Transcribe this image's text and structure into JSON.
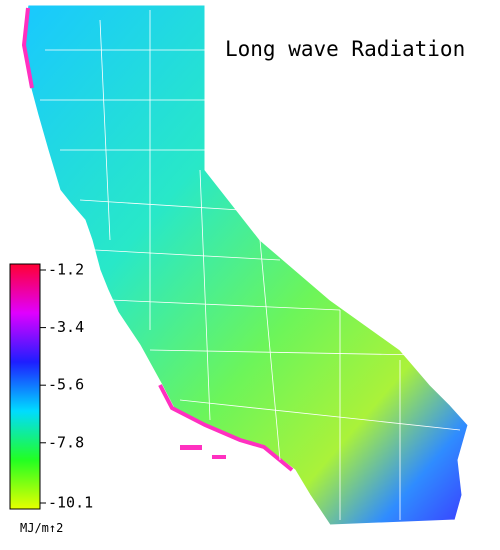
{
  "title": "Long wave Radiation",
  "legend": {
    "ticks": [
      -1.2,
      -3.4,
      -5.6,
      -7.8,
      -10.1
    ],
    "unit": "MJ/m↑2",
    "colors": [
      "#ff0033",
      "#e000ff",
      "#1e1eff",
      "#00dcff",
      "#22ff22",
      "#e6ff00"
    ]
  }
}
